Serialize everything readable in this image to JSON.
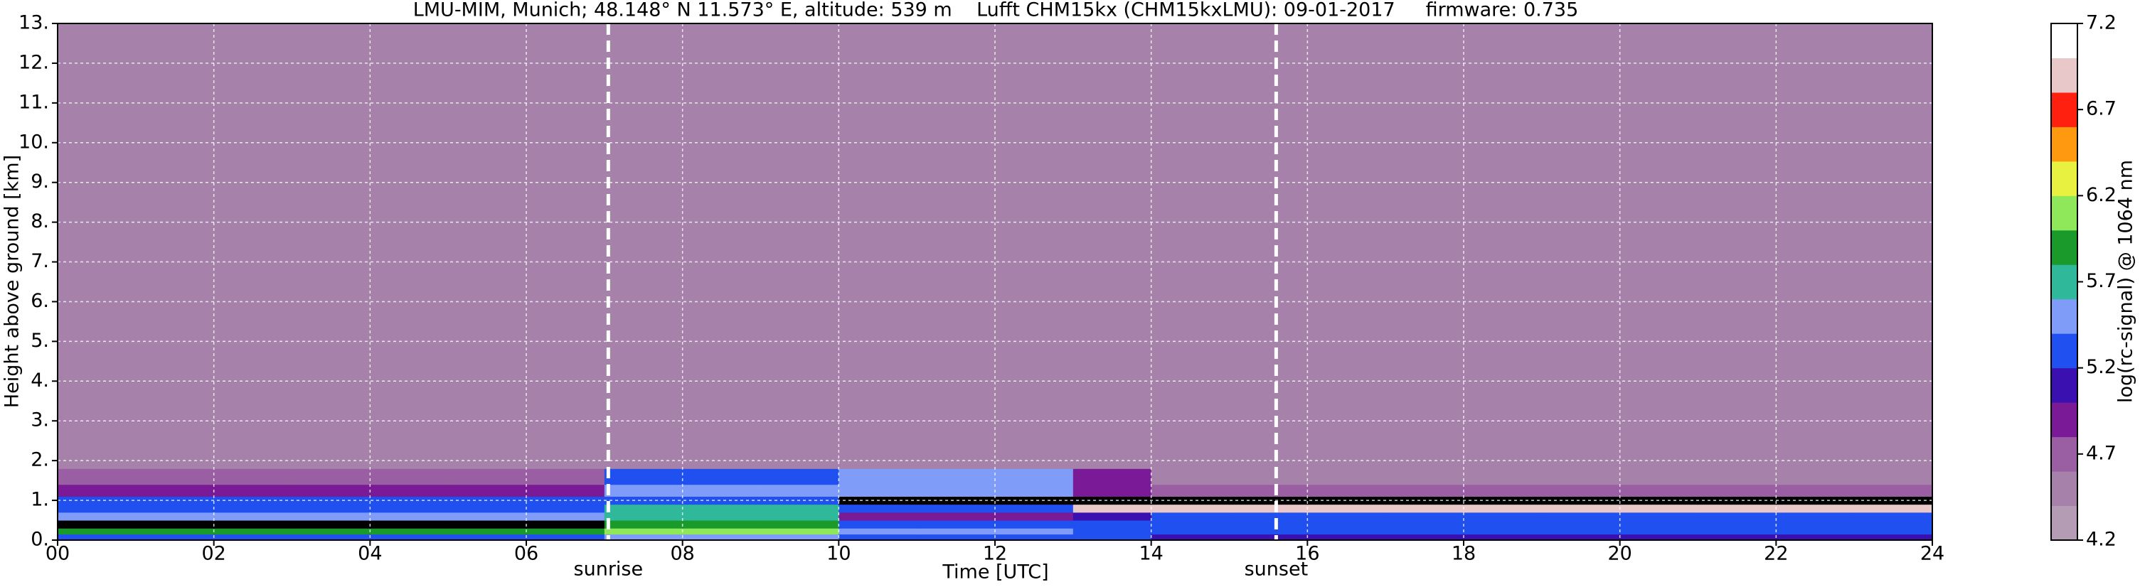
{
  "chart_data": {
    "type": "heatmap",
    "title": "LMU-MIM, Munich; 48.148° N 11.573° E, altitude: 539 m    Lufft CHM15kx (CHM15kxLMU): 09-01-2017     firmware: 0.735",
    "x_label": "Time [UTC]",
    "y_label": "Height above ground [km]",
    "colorbar_label": "log(rc-signal) @ 1064 nm",
    "xlim": [
      0,
      24
    ],
    "ylim": [
      0,
      13
    ],
    "xticks": [
      {
        "value": 0,
        "label": "00"
      },
      {
        "value": 2,
        "label": "02"
      },
      {
        "value": 4,
        "label": "04"
      },
      {
        "value": 6,
        "label": "06"
      },
      {
        "value": 8,
        "label": "08"
      },
      {
        "value": 10,
        "label": "10"
      },
      {
        "value": 12,
        "label": "12"
      },
      {
        "value": 14,
        "label": "14"
      },
      {
        "value": 16,
        "label": "16"
      },
      {
        "value": 18,
        "label": "18"
      },
      {
        "value": 20,
        "label": "20"
      },
      {
        "value": 22,
        "label": "22"
      },
      {
        "value": 24,
        "label": "24"
      }
    ],
    "yticks": [
      {
        "value": 0,
        "label": "0."
      },
      {
        "value": 1,
        "label": "1."
      },
      {
        "value": 2,
        "label": "2."
      },
      {
        "value": 3,
        "label": "3."
      },
      {
        "value": 4,
        "label": "4."
      },
      {
        "value": 5,
        "label": "5."
      },
      {
        "value": 6,
        "label": "6."
      },
      {
        "value": 7,
        "label": "7."
      },
      {
        "value": 8,
        "label": "8."
      },
      {
        "value": 9,
        "label": "9."
      },
      {
        "value": 10,
        "label": "10."
      },
      {
        "value": 11,
        "label": "11."
      },
      {
        "value": 12,
        "label": "12."
      },
      {
        "value": 13,
        "label": "13."
      }
    ],
    "zlim": [
      4.2,
      7.2
    ],
    "zticks": [
      4.2,
      4.7,
      5.2,
      5.7,
      6.2,
      6.7,
      7.2
    ],
    "colors": [
      "#b39cb4",
      "#a682ab",
      "#9a5fa3",
      "#7a1a96",
      "#3a10b0",
      "#2050f0",
      "#7f9cf8",
      "#2fb89a",
      "#1a9a2a",
      "#8ee85a",
      "#e8f040",
      "#ff9a10",
      "#ff2010",
      "#e8c8c8",
      "#ffffff"
    ],
    "under_color": "#000000",
    "grid": true,
    "annotations": [
      {
        "text": "sunrise",
        "x": 7.05
      },
      {
        "text": "sunset",
        "x": 15.6
      }
    ],
    "x_bins": [
      0,
      1,
      2,
      3,
      4,
      5,
      6,
      7,
      8,
      9,
      10,
      11,
      12,
      13,
      14,
      15,
      16,
      17,
      18,
      19,
      20,
      21,
      22,
      23,
      24
    ],
    "y_bins": [
      0,
      0.15,
      0.3,
      0.5,
      0.7,
      0.9,
      1.1,
      1.4,
      1.8,
      2.5,
      4,
      7,
      13
    ],
    "z": [
      [
        5.3,
        5.3,
        5.3,
        5.3,
        5.3,
        5.3,
        5.3,
        5.4,
        5.4,
        5.4,
        5.3,
        5.3,
        5.3,
        5.2,
        5.1,
        5.1,
        5.1,
        5.1,
        5.1,
        5.1,
        5.1,
        5.1,
        5.1,
        5.1
      ],
      [
        5.9,
        5.9,
        5.9,
        5.9,
        5.9,
        5.9,
        5.9,
        6.0,
        6.0,
        6.0,
        5.6,
        5.6,
        5.6,
        5.3,
        5.2,
        5.2,
        5.2,
        5.2,
        5.2,
        5.2,
        5.2,
        5.2,
        5.2,
        5.2
      ],
      [
        4.0,
        4.0,
        4.0,
        4.0,
        4.0,
        4.0,
        4.0,
        5.9,
        5.9,
        5.9,
        5.2,
        5.2,
        5.2,
        5.2,
        5.3,
        5.3,
        5.3,
        5.3,
        5.3,
        5.3,
        5.3,
        5.3,
        5.3,
        5.3
      ],
      [
        5.4,
        5.4,
        5.4,
        5.4,
        5.4,
        5.4,
        5.4,
        5.8,
        5.8,
        5.8,
        5.0,
        5.0,
        5.0,
        5.1,
        5.3,
        5.3,
        5.3,
        5.3,
        5.3,
        5.3,
        5.3,
        5.3,
        5.3,
        5.3
      ],
      [
        5.3,
        5.3,
        5.3,
        5.3,
        5.3,
        5.3,
        5.3,
        5.8,
        5.8,
        5.8,
        5.2,
        5.2,
        5.2,
        6.9,
        7.0,
        7.0,
        7.0,
        7.0,
        7.0,
        7.0,
        7.0,
        7.0,
        7.0,
        7.0
      ],
      [
        5.3,
        5.3,
        5.3,
        5.3,
        5.3,
        5.3,
        5.3,
        5.3,
        5.3,
        5.3,
        4.0,
        4.0,
        4.0,
        4.0,
        4.0,
        4.0,
        4.0,
        4.0,
        4.0,
        4.0,
        4.0,
        4.0,
        4.0,
        4.0
      ],
      [
        5.0,
        5.0,
        5.0,
        5.0,
        5.0,
        5.0,
        5.0,
        5.4,
        5.4,
        5.4,
        5.5,
        5.5,
        5.5,
        5.0,
        4.7,
        4.7,
        4.7,
        4.7,
        4.7,
        4.7,
        4.7,
        4.7,
        4.7,
        4.7
      ],
      [
        4.8,
        4.8,
        4.8,
        4.8,
        4.8,
        4.8,
        4.8,
        5.3,
        5.3,
        5.3,
        5.4,
        5.4,
        5.4,
        4.9,
        4.5,
        4.5,
        4.5,
        4.5,
        4.5,
        4.5,
        4.5,
        4.5,
        4.5,
        4.5
      ],
      [
        4.5,
        4.5,
        4.5,
        4.5,
        4.5,
        4.5,
        4.5,
        4.5,
        4.5,
        4.5,
        4.6,
        4.6,
        4.6,
        4.5,
        4.5,
        4.5,
        4.5,
        4.5,
        4.5,
        4.5,
        4.5,
        4.5,
        4.5,
        4.5
      ],
      [
        4.4,
        4.4,
        4.4,
        4.4,
        4.4,
        4.4,
        4.4,
        4.4,
        4.4,
        4.4,
        4.4,
        4.4,
        4.4,
        4.4,
        4.4,
        4.4,
        4.4,
        4.4,
        4.4,
        4.4,
        4.4,
        4.4,
        4.4,
        4.4
      ],
      [
        4.6,
        4.6,
        4.6,
        4.6,
        4.6,
        4.6,
        4.6,
        4.6,
        4.6,
        4.6,
        4.6,
        4.6,
        4.6,
        4.6,
        4.6,
        4.6,
        4.6,
        4.6,
        4.6,
        4.6,
        4.6,
        4.6,
        4.6,
        4.6
      ],
      [
        4.6,
        4.6,
        4.6,
        4.6,
        4.6,
        4.6,
        4.6,
        4.6,
        4.6,
        4.6,
        4.6,
        4.6,
        4.6,
        4.6,
        4.6,
        4.6,
        4.6,
        4.6,
        4.6,
        4.6,
        4.6,
        4.6,
        4.6,
        4.6
      ]
    ]
  }
}
